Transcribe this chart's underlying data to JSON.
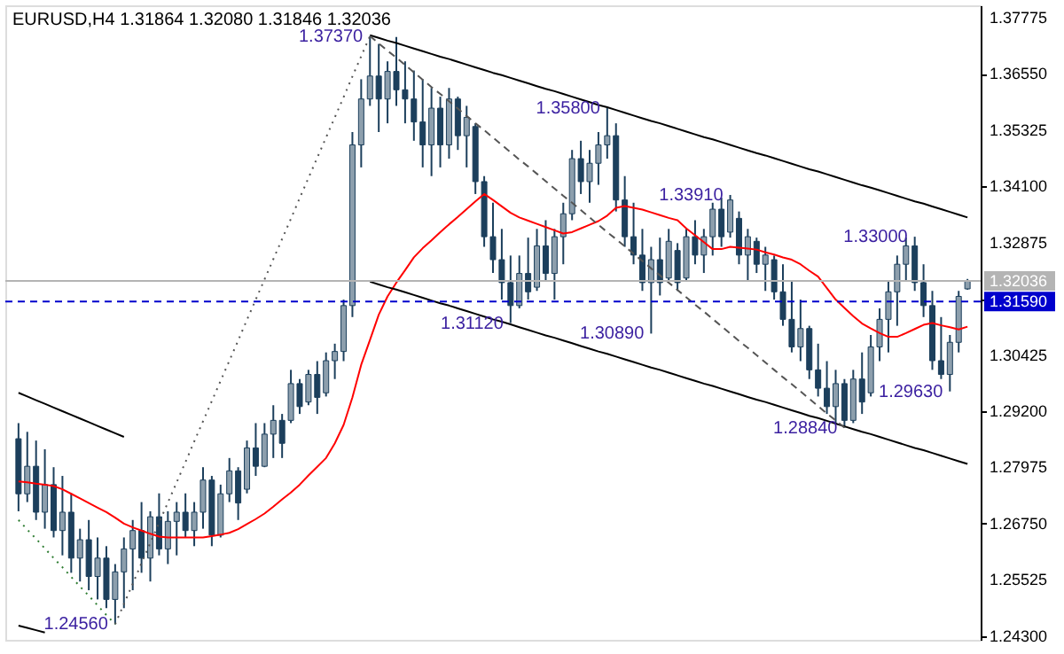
{
  "chart_data": {
    "type": "candlestick",
    "title": "EURUSD,H4  1.31864 1.32080 1.31846 1.32036",
    "color": "#1c3f5c",
    "categories": [
      null,
      null,
      null,
      null,
      null,
      null,
      null,
      null,
      null,
      null,
      null,
      null,
      null,
      null,
      null,
      null,
      null,
      null,
      null,
      null,
      null,
      null,
      null,
      null,
      null,
      null,
      null,
      null,
      null,
      null,
      null,
      null,
      null,
      null,
      null,
      null,
      null,
      null,
      null,
      null,
      null,
      null,
      null,
      null,
      null,
      null,
      null,
      null,
      null,
      null,
      null,
      null,
      null,
      null,
      null,
      null,
      null,
      null,
      null,
      null,
      null,
      null,
      null,
      null,
      null,
      null,
      null,
      null,
      null,
      null,
      null,
      null,
      null,
      null,
      null,
      null,
      null,
      null,
      null,
      null,
      null,
      null,
      null,
      null,
      null,
      null,
      null,
      null,
      null,
      null,
      null,
      null,
      null,
      null,
      null,
      null,
      null,
      null,
      null,
      null,
      null,
      null,
      null,
      null,
      null,
      null,
      null,
      null,
      null
    ],
    "ohlc": [
      [
        1.286,
        1.2894,
        1.2702,
        1.274
      ],
      [
        1.274,
        1.2875,
        1.2722,
        1.28
      ],
      [
        1.28,
        1.2856,
        1.2683,
        1.27
      ],
      [
        1.27,
        1.2837,
        1.2664,
        1.276
      ],
      [
        1.276,
        1.2798,
        1.2645,
        1.266
      ],
      [
        1.266,
        1.2779,
        1.2606,
        1.27
      ],
      [
        1.27,
        1.2741,
        1.2568,
        1.26
      ],
      [
        1.26,
        1.2664,
        1.2549,
        1.264
      ],
      [
        1.264,
        1.2683,
        1.253,
        1.256
      ],
      [
        1.256,
        1.2645,
        1.251,
        1.26
      ],
      [
        1.26,
        1.2626,
        1.2491,
        1.251
      ],
      [
        1.251,
        1.2587,
        1.2456,
        1.257
      ],
      [
        1.257,
        1.2645,
        1.2491,
        1.262
      ],
      [
        1.262,
        1.2683,
        1.253,
        1.266
      ],
      [
        1.266,
        1.2722,
        1.2568,
        1.26
      ],
      [
        1.26,
        1.2702,
        1.2549,
        1.269
      ],
      [
        1.269,
        1.2741,
        1.2606,
        1.262
      ],
      [
        1.262,
        1.2702,
        1.2587,
        1.268
      ],
      [
        1.268,
        1.2722,
        1.2606,
        1.27
      ],
      [
        1.27,
        1.2741,
        1.2645,
        1.266
      ],
      [
        1.266,
        1.2722,
        1.2626,
        1.27
      ],
      [
        1.27,
        1.2798,
        1.2664,
        1.277
      ],
      [
        1.277,
        1.2779,
        1.2626,
        1.265
      ],
      [
        1.265,
        1.276,
        1.2645,
        1.274
      ],
      [
        1.274,
        1.2818,
        1.2722,
        1.279
      ],
      [
        1.279,
        1.2798,
        1.2683,
        1.272
      ],
      [
        1.275,
        1.2856,
        1.2741,
        1.284
      ],
      [
        1.284,
        1.2894,
        1.2779,
        1.28
      ],
      [
        1.28,
        1.2894,
        1.2798,
        1.287
      ],
      [
        1.287,
        1.2933,
        1.2818,
        1.29
      ],
      [
        1.29,
        1.2914,
        1.2818,
        1.285
      ],
      [
        1.29,
        1.301,
        1.2894,
        1.298
      ],
      [
        1.298,
        1.299,
        1.2914,
        1.293
      ],
      [
        1.294,
        1.301,
        1.2933,
        1.3
      ],
      [
        1.3,
        1.3029,
        1.2914,
        1.295
      ],
      [
        1.296,
        1.3048,
        1.2952,
        1.303
      ],
      [
        1.303,
        1.3067,
        1.299,
        1.305
      ],
      [
        1.305,
        1.3163,
        1.3029,
        1.315
      ],
      [
        1.315,
        1.3528,
        1.3125,
        1.35
      ],
      [
        1.35,
        1.3643,
        1.3451,
        1.36
      ],
      [
        1.36,
        1.3737,
        1.3585,
        1.365
      ],
      [
        1.365,
        1.372,
        1.3528,
        1.36
      ],
      [
        1.36,
        1.3682,
        1.3547,
        1.366
      ],
      [
        1.366,
        1.3735,
        1.3585,
        1.362
      ],
      [
        1.362,
        1.3682,
        1.3547,
        1.36
      ],
      [
        1.36,
        1.3662,
        1.3509,
        1.355
      ],
      [
        1.355,
        1.3643,
        1.3451,
        1.35
      ],
      [
        1.35,
        1.3624,
        1.3432,
        1.358
      ],
      [
        1.358,
        1.3605,
        1.3451,
        1.35
      ],
      [
        1.35,
        1.3624,
        1.347,
        1.36
      ],
      [
        1.36,
        1.3605,
        1.3489,
        1.352
      ],
      [
        1.352,
        1.3585,
        1.3451,
        1.356
      ],
      [
        1.354,
        1.3547,
        1.3393,
        1.342
      ],
      [
        1.342,
        1.3432,
        1.3278,
        1.33
      ],
      [
        1.33,
        1.3374,
        1.3221,
        1.325
      ],
      [
        1.325,
        1.3317,
        1.3163,
        1.32
      ],
      [
        1.32,
        1.3259,
        1.3112,
        1.315
      ],
      [
        1.315,
        1.3259,
        1.3144,
        1.322
      ],
      [
        1.322,
        1.3298,
        1.3163,
        1.318
      ],
      [
        1.319,
        1.3317,
        1.3182,
        1.328
      ],
      [
        1.328,
        1.3336,
        1.3202,
        1.322
      ],
      [
        1.322,
        1.3317,
        1.3163,
        1.33
      ],
      [
        1.33,
        1.3374,
        1.324,
        1.335
      ],
      [
        1.335,
        1.3489,
        1.3336,
        1.347
      ],
      [
        1.347,
        1.3509,
        1.3393,
        1.342
      ],
      [
        1.342,
        1.3489,
        1.3374,
        1.346
      ],
      [
        1.346,
        1.3528,
        1.3413,
        1.35
      ],
      [
        1.35,
        1.358,
        1.347,
        1.352
      ],
      [
        1.352,
        1.3547,
        1.3355,
        1.338
      ],
      [
        1.338,
        1.3432,
        1.3278,
        1.33
      ],
      [
        1.33,
        1.3374,
        1.324,
        1.326
      ],
      [
        1.326,
        1.3317,
        1.3182,
        1.32
      ],
      [
        1.32,
        1.3278,
        1.3089,
        1.325
      ],
      [
        1.325,
        1.3298,
        1.3172,
        1.32
      ],
      [
        1.321,
        1.3317,
        1.3202,
        1.329
      ],
      [
        1.327,
        1.3286,
        1.3182,
        1.32
      ],
      [
        1.321,
        1.3317,
        1.3202,
        1.33
      ],
      [
        1.33,
        1.3336,
        1.324,
        1.326
      ],
      [
        1.326,
        1.3317,
        1.3221,
        1.33
      ],
      [
        1.33,
        1.3374,
        1.3259,
        1.336
      ],
      [
        1.336,
        1.3385,
        1.3278,
        1.33
      ],
      [
        1.331,
        1.3391,
        1.3298,
        1.338
      ],
      [
        1.334,
        1.3355,
        1.324,
        1.326
      ],
      [
        1.326,
        1.3317,
        1.3202,
        1.33
      ],
      [
        1.329,
        1.3298,
        1.3221,
        1.324
      ],
      [
        1.324,
        1.3278,
        1.3182,
        1.326
      ],
      [
        1.325,
        1.3259,
        1.3163,
        1.318
      ],
      [
        1.318,
        1.324,
        1.3106,
        1.312
      ],
      [
        1.312,
        1.3202,
        1.3048,
        1.306
      ],
      [
        1.306,
        1.3163,
        1.3029,
        1.31
      ],
      [
        1.31,
        1.3106,
        1.299,
        1.301
      ],
      [
        1.301,
        1.3067,
        1.2952,
        1.297
      ],
      [
        1.297,
        1.3029,
        1.2914,
        1.293
      ],
      [
        1.293,
        1.301,
        1.2894,
        1.298
      ],
      [
        1.298,
        1.299,
        1.2884,
        1.29
      ],
      [
        1.29,
        1.301,
        1.2894,
        1.299
      ],
      [
        1.299,
        1.3048,
        1.2914,
        1.294
      ],
      [
        1.296,
        1.3086,
        1.2952,
        1.306
      ],
      [
        1.306,
        1.3144,
        1.3029,
        1.312
      ],
      [
        1.312,
        1.3202,
        1.3048,
        1.318
      ],
      [
        1.318,
        1.3259,
        1.3106,
        1.324
      ],
      [
        1.324,
        1.3298,
        1.3202,
        1.328
      ],
      [
        1.328,
        1.33,
        1.3182,
        1.32
      ],
      [
        1.32,
        1.324,
        1.3125,
        1.315
      ],
      [
        1.315,
        1.3182,
        1.301,
        1.303
      ],
      [
        1.303,
        1.3125,
        1.299,
        1.3
      ],
      [
        1.3,
        1.3086,
        1.2963,
        1.307
      ],
      [
        1.307,
        1.3182,
        1.3048,
        1.317
      ],
      [
        1.31864,
        1.3208,
        1.31846,
        1.32036
      ]
    ],
    "series": [
      {
        "type": "line",
        "color": "#ff0000",
        "line_style": "solid",
        "values": [
          1.2767,
          1.2765,
          1.2762,
          1.276,
          1.2757,
          1.275,
          1.274,
          1.273,
          1.272,
          1.271,
          1.27,
          1.2688,
          1.2675,
          1.2667,
          1.266,
          1.2653,
          1.2647,
          1.2645,
          1.2645,
          1.2645,
          1.2645,
          1.2645,
          1.2648,
          1.2651,
          1.2655,
          1.2663,
          1.2674,
          1.2685,
          1.2697,
          1.2712,
          1.2728,
          1.2743,
          1.276,
          1.278,
          1.2799,
          1.2818,
          1.285,
          1.289,
          1.295,
          1.3021,
          1.3075,
          1.313,
          1.317,
          1.32,
          1.3227,
          1.3255,
          1.3275,
          1.3292,
          1.331,
          1.3327,
          1.3343,
          1.336,
          1.3377,
          1.3393,
          1.338,
          1.3366,
          1.3352,
          1.3342,
          1.3335,
          1.3328,
          1.3321,
          1.3314,
          1.3307,
          1.331,
          1.3318,
          1.3326,
          1.3334,
          1.3346,
          1.3363,
          1.3367,
          1.3363,
          1.3359,
          1.3353,
          1.3347,
          1.3341,
          1.3336,
          1.3318,
          1.3303,
          1.3288,
          1.3273,
          1.3273,
          1.3278,
          1.3276,
          1.3274,
          1.3272,
          1.3266,
          1.3261,
          1.3255,
          1.325,
          1.324,
          1.3226,
          1.3213,
          1.3188,
          1.3163,
          1.3145,
          1.3127,
          1.3111,
          1.31,
          1.309,
          1.3082,
          1.3082,
          1.309,
          1.3099,
          1.3108,
          1.3112,
          1.3107,
          1.3103,
          1.3098,
          1.3104
        ]
      },
      {
        "type": "line",
        "color": "#000000",
        "line_style": "solid",
        "values": [
          null,
          null,
          null,
          null,
          null,
          null,
          null,
          null,
          null,
          null,
          null,
          null,
          null,
          null,
          null,
          null,
          null,
          null,
          null,
          null,
          null,
          null,
          null,
          null,
          null,
          null,
          null,
          null,
          null,
          null,
          null,
          null,
          null,
          null,
          null,
          null,
          null,
          null,
          null,
          null,
          1.3739,
          1.3733,
          1.3727,
          1.3722,
          1.3716,
          1.371,
          1.3704,
          1.3698,
          1.3692,
          1.3687,
          1.3681,
          1.3675,
          1.3669,
          1.3663,
          1.3657,
          1.3652,
          1.3646,
          1.364,
          1.3634,
          1.3628,
          1.3622,
          1.3617,
          1.3611,
          1.3605,
          1.3599,
          1.3593,
          1.3587,
          1.3582,
          1.3576,
          1.357,
          1.3564,
          1.3558,
          1.3552,
          1.3547,
          1.3541,
          1.3535,
          1.3529,
          1.3523,
          1.3517,
          1.3512,
          1.3506,
          1.35,
          1.3494,
          1.3488,
          1.3482,
          1.3477,
          1.3471,
          1.3465,
          1.3459,
          1.3453,
          1.3447,
          1.3442,
          1.3436,
          1.343,
          1.3424,
          1.3418,
          1.3412,
          1.3407,
          1.3401,
          1.3395,
          1.3389,
          1.3383,
          1.3377,
          1.3372,
          1.3366,
          1.336,
          1.3354,
          1.3348,
          1.3342
        ]
      },
      {
        "type": "line",
        "color": "#000000",
        "line_style": "solid",
        "values": [
          null,
          null,
          null,
          null,
          null,
          null,
          null,
          null,
          null,
          null,
          null,
          null,
          null,
          null,
          null,
          null,
          null,
          null,
          null,
          null,
          null,
          null,
          null,
          null,
          null,
          null,
          null,
          null,
          null,
          null,
          null,
          null,
          null,
          null,
          null,
          null,
          null,
          null,
          null,
          null,
          1.3202,
          1.3196,
          1.319,
          1.3185,
          1.3179,
          1.3173,
          1.3167,
          1.3161,
          1.3155,
          1.315,
          1.3144,
          1.3138,
          1.3132,
          1.3126,
          1.312,
          1.3115,
          1.3109,
          1.3103,
          1.3097,
          1.3091,
          1.3085,
          1.308,
          1.3074,
          1.3068,
          1.3062,
          1.3056,
          1.305,
          1.3045,
          1.3039,
          1.3033,
          1.3027,
          1.3021,
          1.3015,
          1.301,
          1.3004,
          1.2998,
          1.2992,
          1.2986,
          1.298,
          1.2975,
          1.2969,
          1.2963,
          1.2957,
          1.2951,
          1.2945,
          1.294,
          1.2934,
          1.2928,
          1.2922,
          1.2916,
          1.291,
          1.2905,
          1.2899,
          1.2893,
          1.2887,
          1.2881,
          1.2875,
          1.287,
          1.2864,
          1.2858,
          1.2852,
          1.2846,
          1.284,
          1.2835,
          1.2829,
          1.2823,
          1.2817,
          1.2811,
          1.2805
        ]
      },
      {
        "type": "line",
        "color": "#000000",
        "line_style": "solid",
        "values": [
          1.296,
          1.2952,
          1.2944,
          1.2936,
          1.2928,
          1.292,
          1.2912,
          1.2904,
          1.2896,
          1.2888,
          1.288,
          1.2872,
          1.2864,
          null,
          null,
          null,
          null,
          null,
          null,
          null,
          null,
          null,
          null,
          null,
          null,
          null,
          null,
          null,
          null,
          null,
          null,
          null,
          null,
          null,
          null,
          null,
          null,
          null,
          null,
          null,
          null,
          null,
          null,
          null,
          null,
          null,
          null,
          null,
          null,
          null,
          null,
          null,
          null,
          null,
          null,
          null,
          null,
          null,
          null,
          null,
          null,
          null,
          null,
          null,
          null,
          null,
          null,
          null,
          null,
          null,
          null,
          null,
          null,
          null,
          null,
          null,
          null,
          null,
          null,
          null,
          null,
          null,
          null,
          null,
          null,
          null,
          null,
          null,
          null,
          null,
          null,
          null,
          null,
          null,
          null,
          null,
          null,
          null,
          null,
          null,
          null,
          null,
          null,
          null,
          null,
          null,
          null,
          null,
          null
        ]
      },
      {
        "type": "line",
        "color": "#000000",
        "line_style": "solid",
        "values": [
          1.2453,
          1.2448,
          1.2443,
          1.2438,
          null,
          null,
          null,
          null,
          null,
          null,
          null,
          null,
          null,
          null,
          null,
          null,
          null,
          null,
          null,
          null,
          null,
          null,
          null,
          null,
          null,
          null,
          null,
          null,
          null,
          null,
          null,
          null,
          null,
          null,
          null,
          null,
          null,
          null,
          null,
          null,
          null,
          null,
          null,
          null,
          null,
          null,
          null,
          null,
          null,
          null,
          null,
          null,
          null,
          null,
          null,
          null,
          null,
          null,
          null,
          null,
          null,
          null,
          null,
          null,
          null,
          null,
          null,
          null,
          null,
          null,
          null,
          null,
          null,
          null,
          null,
          null,
          null,
          null,
          null,
          null,
          null,
          null,
          null,
          null,
          null,
          null,
          null,
          null,
          null,
          null,
          null,
          null,
          null,
          null,
          null,
          null,
          null,
          null,
          null,
          null,
          null,
          null,
          null,
          null,
          null,
          null,
          null,
          null,
          null
        ]
      },
      {
        "type": "line",
        "color": "#555555",
        "line_style": "dotted",
        "values": [
          null,
          null,
          null,
          null,
          null,
          null,
          null,
          null,
          null,
          null,
          null,
          1.2456,
          1.25,
          1.2544,
          1.2589,
          1.2633,
          1.2677,
          1.2721,
          1.2765,
          1.2809,
          1.2854,
          1.2898,
          1.2942,
          1.2986,
          1.303,
          1.3074,
          1.3119,
          1.3163,
          1.3207,
          1.3251,
          1.3295,
          1.3339,
          1.3384,
          1.3428,
          1.3472,
          1.3516,
          1.356,
          1.3604,
          1.3649,
          1.3693,
          1.3737,
          null,
          null,
          null,
          null,
          null,
          null,
          null,
          null,
          null,
          null,
          null,
          null,
          null,
          null,
          null,
          null,
          null,
          null,
          null,
          null,
          null,
          null,
          null,
          null,
          null,
          null,
          null,
          null,
          null,
          null,
          null,
          null,
          null,
          null,
          null,
          null,
          null,
          null,
          null,
          null,
          null,
          null,
          null,
          null,
          null,
          null,
          null,
          null,
          null,
          null,
          null,
          null,
          null,
          null,
          null,
          null,
          null,
          null,
          null,
          null,
          null,
          null,
          null,
          null,
          null,
          null,
          null,
          null
        ]
      },
      {
        "type": "line",
        "color": "#555555",
        "line_style": "dashed",
        "values": [
          null,
          null,
          null,
          null,
          null,
          null,
          null,
          null,
          null,
          null,
          null,
          null,
          null,
          null,
          null,
          null,
          null,
          null,
          null,
          null,
          null,
          null,
          null,
          null,
          null,
          null,
          null,
          null,
          null,
          null,
          null,
          null,
          null,
          null,
          null,
          null,
          null,
          null,
          null,
          null,
          1.3737,
          1.3721,
          1.3705,
          1.369,
          1.3674,
          1.3658,
          1.3642,
          1.3626,
          1.3611,
          1.3595,
          1.3579,
          1.3563,
          1.3547,
          1.3532,
          1.3516,
          1.35,
          1.3484,
          1.3468,
          1.3453,
          1.3437,
          1.3421,
          1.3405,
          1.3389,
          1.3374,
          1.3358,
          1.3342,
          1.3326,
          1.331,
          1.3295,
          1.3279,
          1.3263,
          1.3247,
          1.3231,
          1.3216,
          1.32,
          1.3184,
          1.3168,
          1.3152,
          1.3137,
          1.3121,
          1.3105,
          1.3089,
          1.3073,
          1.3058,
          1.3042,
          1.3026,
          1.301,
          1.2994,
          1.2979,
          1.2963,
          1.2947,
          1.2931,
          1.2915,
          1.29,
          1.2884,
          null,
          null,
          null,
          null,
          null,
          null,
          null,
          null,
          null,
          null,
          null,
          null,
          null,
          null
        ]
      },
      {
        "type": "line",
        "color": "#2e7d32",
        "line_style": "dotted",
        "values": [
          1.2683,
          1.2662,
          1.2642,
          1.2621,
          1.26,
          1.258,
          1.2559,
          1.2538,
          1.2518,
          1.2497,
          1.2476,
          1.2456,
          null,
          null,
          null,
          null,
          null,
          null,
          null,
          null,
          null,
          null,
          null,
          null,
          null,
          null,
          null,
          null,
          null,
          null,
          null,
          null,
          null,
          null,
          null,
          null,
          null,
          null,
          null,
          null,
          null,
          null,
          null,
          null,
          null,
          null,
          null,
          null,
          null,
          null,
          null,
          null,
          null,
          null,
          null,
          null,
          null,
          null,
          null,
          null,
          null,
          null,
          null,
          null,
          null,
          null,
          null,
          null,
          null,
          null,
          null,
          null,
          null,
          null,
          null,
          null,
          null,
          null,
          null,
          null,
          null,
          null,
          null,
          null,
          null,
          null,
          null,
          null,
          null,
          null,
          null,
          null,
          null,
          null,
          null,
          null,
          null,
          null,
          null,
          null,
          null,
          null,
          null,
          null,
          null,
          null,
          null,
          null,
          null
        ]
      }
    ],
    "ylim": [
      1.2422,
      1.3804
    ],
    "yticks": [
      {
        "value": 1.243,
        "label": "1.24300"
      },
      1.25525,
      {
        "value": 1.2675,
        "label": "1.26750"
      },
      1.27975,
      {
        "value": 1.292,
        "label": "1.29200"
      },
      1.30425,
      {
        "value": 1.3165,
        "label": null
      },
      1.32875,
      {
        "value": 1.341,
        "label": "1.34100"
      },
      1.35325,
      {
        "value": 1.3655,
        "label": "1.36550"
      },
      1.37775
    ],
    "tick_labels": "y",
    "grid": false,
    "ref_lines": [
      {
        "axis": "y",
        "value": 1.32036,
        "label": "1.32036",
        "color": "#b4b4b4",
        "line_style": "solid"
      },
      {
        "axis": "y",
        "value": 1.3159,
        "label": "1.31590",
        "color": "#0000cc",
        "line_style": "dashed"
      }
    ],
    "annotations": [
      "1.37370",
      "1.24560",
      "1.31120",
      "1.35800",
      "1.30890",
      "1.33910",
      "1.28840",
      "1.33000",
      "1.29630"
    ]
  }
}
